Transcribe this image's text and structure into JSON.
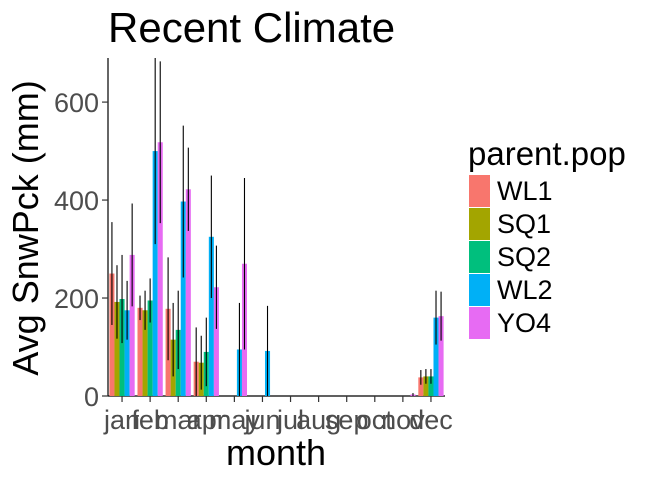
{
  "chart_data": {
    "type": "bar",
    "title": "Recent Climate",
    "xlabel": "month",
    "ylabel": "Avg SnwPck (mm)",
    "ylim": [
      0,
      690
    ],
    "yticks": [
      0,
      200,
      400,
      600
    ],
    "grid": false,
    "legend_title": "parent.pop",
    "legend_position": "right",
    "categories": [
      "jan",
      "feb",
      "mar",
      "apr",
      "may",
      "jun",
      "jul",
      "aug",
      "sep",
      "oct",
      "nov",
      "dec"
    ],
    "series": [
      {
        "name": "WL1",
        "color": "#F8766D",
        "values": [
          250,
          180,
          178,
          70,
          0,
          0,
          0,
          0,
          0,
          0,
          0,
          38
        ],
        "errors": [
          105,
          25,
          105,
          70,
          0,
          0,
          0,
          0,
          0,
          0,
          0,
          15
        ]
      },
      {
        "name": "SQ1",
        "color": "#A3A500",
        "values": [
          192,
          175,
          115,
          68,
          0,
          0,
          0,
          0,
          0,
          0,
          0,
          40
        ],
        "errors": [
          75,
          40,
          75,
          55,
          0,
          0,
          0,
          0,
          0,
          0,
          0,
          15
        ]
      },
      {
        "name": "SQ2",
        "color": "#00BF7D",
        "values": [
          198,
          195,
          135,
          90,
          0,
          0,
          0,
          0,
          0,
          0,
          0,
          40
        ],
        "errors": [
          90,
          45,
          80,
          70,
          0,
          0,
          0,
          0,
          0,
          0,
          0,
          15
        ]
      },
      {
        "name": "WL2",
        "color": "#00B0F6",
        "values": [
          175,
          500,
          397,
          325,
          95,
          92,
          0,
          0,
          0,
          0,
          0,
          160
        ],
        "errors": [
          60,
          190,
          155,
          125,
          95,
          92,
          0,
          0,
          0,
          0,
          0,
          55
        ]
      },
      {
        "name": "YO4",
        "color": "#E76BF3",
        "values": [
          288,
          518,
          422,
          222,
          270,
          0,
          0,
          0,
          0,
          0,
          3,
          163
        ],
        "errors": [
          105,
          165,
          85,
          85,
          175,
          0,
          0,
          0,
          0,
          0,
          3,
          50
        ]
      }
    ]
  }
}
